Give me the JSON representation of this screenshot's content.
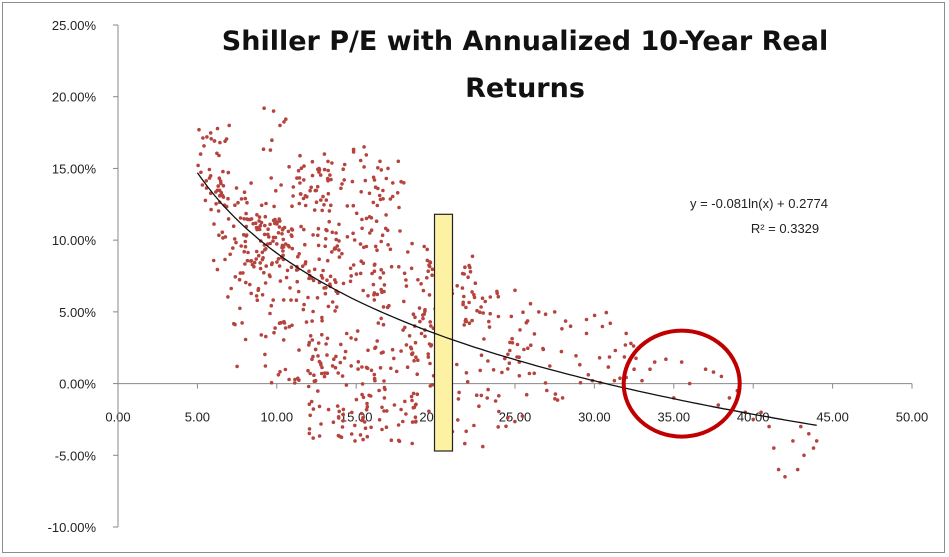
{
  "chart_data": {
    "type": "scatter",
    "title": [
      "Shiller P/E with Annualized 10-Year Real",
      "Returns"
    ],
    "xlabel": "",
    "ylabel": "",
    "xlim": [
      0,
      50
    ],
    "ylim": [
      -0.1,
      0.25
    ],
    "x_tick_labels": [
      "0.00",
      "5.00",
      "10.00",
      "15.00",
      "20.00",
      "25.00",
      "30.00",
      "35.00",
      "40.00",
      "45.00",
      "50.00"
    ],
    "y_tick_labels": [
      "25.00%",
      "20.00%",
      "15.00%",
      "10.00%",
      "5.00%",
      "0.00%",
      "-5.00%",
      "-10.00%"
    ],
    "point_color": "#b5443f",
    "trendline": {
      "type": "logarithmic",
      "a": -0.081,
      "b": 0.2774,
      "x_range": [
        5.0,
        44.0
      ],
      "equation_label": "y = -0.081ln(x) + 0.2774",
      "r2_label": "R² = 0.3329"
    },
    "highlight_bar": {
      "x": 20.5,
      "y_range": [
        -0.047,
        0.118
      ],
      "color": "#fdf2a3"
    },
    "highlight_circle": {
      "x": 35.5,
      "y": 0.0,
      "color": "#c00000"
    },
    "clusters": [
      {
        "x": [
          5.0,
          7.0
        ],
        "y": [
          0.12,
          0.178
        ],
        "n": 38
      },
      {
        "x": [
          6.0,
          9.0
        ],
        "y": [
          0.06,
          0.14
        ],
        "n": 40
      },
      {
        "x": [
          7.0,
          10.0
        ],
        "y": [
          0.03,
          0.12
        ],
        "n": 30
      },
      {
        "x": [
          8.0,
          11.0
        ],
        "y": [
          0.08,
          0.115
        ],
        "n": 70
      },
      {
        "x": [
          9.0,
          12.0
        ],
        "y": [
          0.1,
          0.19
        ],
        "n": 22
      },
      {
        "x": [
          9.0,
          13.0
        ],
        "y": [
          0.0,
          0.09
        ],
        "n": 60
      },
      {
        "x": [
          11.0,
          13.5
        ],
        "y": [
          0.12,
          0.155
        ],
        "n": 45
      },
      {
        "x": [
          11.0,
          14.0
        ],
        "y": [
          0.05,
          0.11
        ],
        "n": 45
      },
      {
        "x": [
          12.0,
          16.0
        ],
        "y": [
          -0.04,
          0.04
        ],
        "n": 75
      },
      {
        "x": [
          13.0,
          17.0
        ],
        "y": [
          0.06,
          0.12
        ],
        "n": 40
      },
      {
        "x": [
          14.0,
          18.0
        ],
        "y": [
          0.1,
          0.165
        ],
        "n": 45
      },
      {
        "x": [
          15.0,
          19.0
        ],
        "y": [
          -0.045,
          0.02
        ],
        "n": 50
      },
      {
        "x": [
          16.0,
          20.0
        ],
        "y": [
          0.02,
          0.1
        ],
        "n": 70
      },
      {
        "x": [
          18.0,
          22.0
        ],
        "y": [
          -0.03,
          0.07
        ],
        "n": 40
      },
      {
        "x": [
          19.0,
          23.0
        ],
        "y": [
          0.04,
          0.095
        ],
        "n": 35
      },
      {
        "x": [
          20.0,
          24.0
        ],
        "y": [
          -0.045,
          0.0
        ],
        "n": 20
      },
      {
        "x": [
          22.0,
          27.0
        ],
        "y": [
          0.0,
          0.07
        ],
        "n": 35
      },
      {
        "x": [
          24.0,
          28.0
        ],
        "y": [
          -0.03,
          0.03
        ],
        "n": 15
      },
      {
        "x": [
          25.0,
          32.0
        ],
        "y": [
          0.0,
          0.05
        ],
        "n": 22
      },
      {
        "x": [
          30.0,
          33.0
        ],
        "y": [
          0.0,
          0.04
        ],
        "n": 8
      }
    ],
    "points": [
      {
        "x": 5.1,
        "y": 0.177
      },
      {
        "x": 5.2,
        "y": 0.16
      },
      {
        "x": 5.6,
        "y": 0.172
      },
      {
        "x": 7.0,
        "y": 0.18
      },
      {
        "x": 7.5,
        "y": 0.012
      },
      {
        "x": 9.2,
        "y": 0.192
      },
      {
        "x": 9.8,
        "y": 0.19
      },
      {
        "x": 10.2,
        "y": 0.18
      },
      {
        "x": 13.0,
        "y": 0.16
      },
      {
        "x": 15.5,
        "y": 0.165
      },
      {
        "x": 16.5,
        "y": 0.155
      },
      {
        "x": 17.0,
        "y": 0.15
      },
      {
        "x": 18.0,
        "y": 0.14
      },
      {
        "x": 22.5,
        "y": 0.07
      },
      {
        "x": 25.0,
        "y": 0.065
      },
      {
        "x": 26.5,
        "y": 0.05
      },
      {
        "x": 27.5,
        "y": 0.05
      },
      {
        "x": 28.0,
        "y": -0.01
      },
      {
        "x": 28.5,
        "y": 0.04
      },
      {
        "x": 29.5,
        "y": 0.035
      },
      {
        "x": 31.0,
        "y": 0.042
      },
      {
        "x": 32.0,
        "y": 0.035
      },
      {
        "x": 32.3,
        "y": 0.028
      },
      {
        "x": 32.5,
        "y": 0.01
      },
      {
        "x": 33.0,
        "y": 0.002
      },
      {
        "x": 33.5,
        "y": 0.01
      },
      {
        "x": 33.8,
        "y": 0.015
      },
      {
        "x": 34.5,
        "y": 0.017
      },
      {
        "x": 35.5,
        "y": 0.015
      },
      {
        "x": 37.0,
        "y": 0.01
      },
      {
        "x": 37.5,
        "y": 0.008
      },
      {
        "x": 38.0,
        "y": 0.005
      },
      {
        "x": 36.0,
        "y": 0.0
      },
      {
        "x": 35.0,
        "y": -0.01
      },
      {
        "x": 38.5,
        "y": -0.01
      },
      {
        "x": 39.5,
        "y": -0.02
      },
      {
        "x": 40.0,
        "y": -0.025
      },
      {
        "x": 40.5,
        "y": -0.02
      },
      {
        "x": 41.0,
        "y": -0.03
      },
      {
        "x": 41.3,
        "y": -0.045
      },
      {
        "x": 41.6,
        "y": -0.06
      },
      {
        "x": 42.0,
        "y": -0.065
      },
      {
        "x": 42.5,
        "y": -0.04
      },
      {
        "x": 43.0,
        "y": -0.03
      },
      {
        "x": 43.2,
        "y": -0.05
      },
      {
        "x": 43.5,
        "y": -0.035
      },
      {
        "x": 43.8,
        "y": -0.045
      },
      {
        "x": 44.0,
        "y": -0.04
      },
      {
        "x": 42.8,
        "y": -0.06
      },
      {
        "x": 39.0,
        "y": -0.005
      },
      {
        "x": 37.8,
        "y": -0.015
      }
    ]
  }
}
